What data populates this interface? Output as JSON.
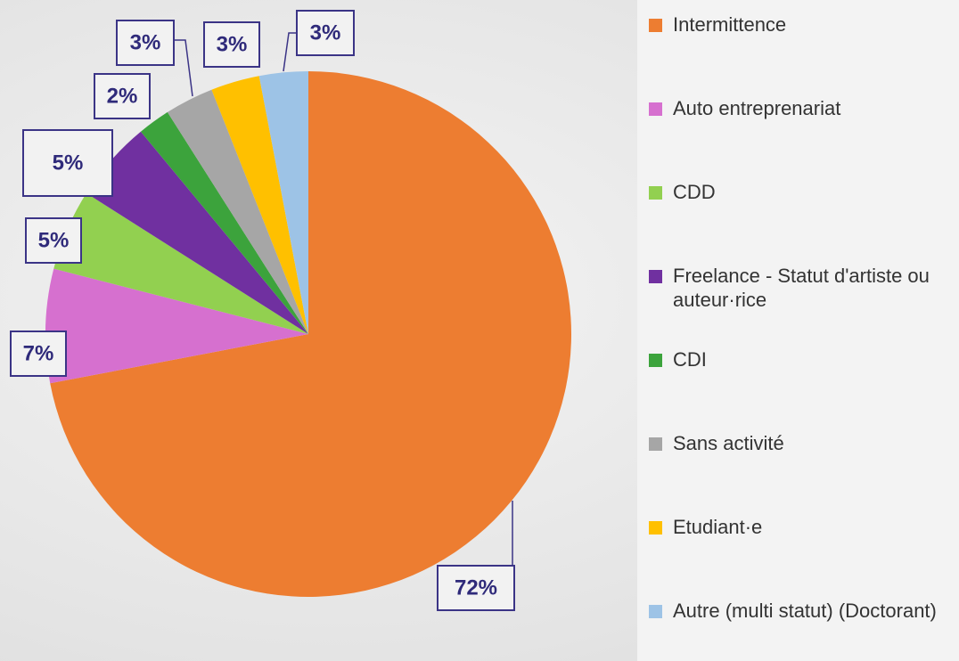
{
  "chart_data": {
    "type": "pie",
    "categories": [
      "Intermittence",
      "Auto entreprenariat",
      "CDD",
      "Freelance - Statut d'artiste ou auteur·rice",
      "CDI",
      "Sans activité",
      "Etudiant·e",
      "Autre (multi statut) (Doctorant)"
    ],
    "values": [
      72,
      7,
      5,
      5,
      2,
      3,
      3,
      3
    ],
    "value_labels": [
      "72%",
      "7%",
      "5%",
      "5%",
      "2%",
      "3%",
      "3%",
      "3%"
    ],
    "colors": [
      "#ed7d31",
      "#d670cf",
      "#92d050",
      "#7030a0",
      "#3ca33c",
      "#a6a6a6",
      "#ffc000",
      "#9dc3e6"
    ],
    "legend": "right"
  }
}
